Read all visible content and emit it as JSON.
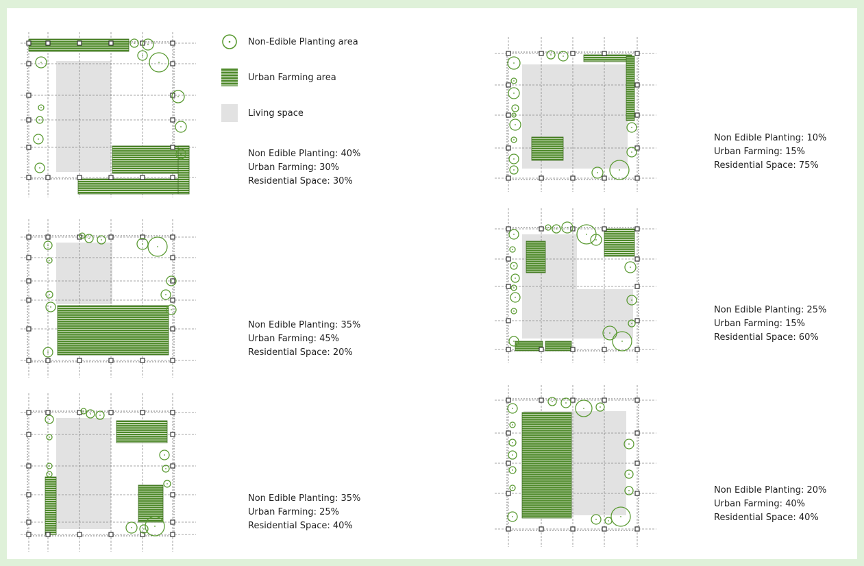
{
  "colors": {
    "background": "#dff1d9",
    "panel": "#ffffff",
    "living_space": "#e2e2e2",
    "farming_green": "#4f8a2b",
    "tree_green": "#5a9a32",
    "grid": "#888888"
  },
  "legend": {
    "non_edible": {
      "label": "Non-Edible Planting area",
      "icon": "tree-circle-icon"
    },
    "farming": {
      "label": "Urban Farming area",
      "icon": "striped-bed-icon"
    },
    "living": {
      "label": "Living space",
      "icon": "grey-square-icon"
    }
  },
  "scenarios": [
    {
      "id": "1",
      "non_edible": "Non Edible Planting: 40%",
      "farming": "Urban Farming: 30%",
      "residential": "Residential  Space: 30%"
    },
    {
      "id": "2",
      "non_edible": "Non Edible Planting: 35%",
      "farming": "Urban Farming: 45%",
      "residential": "Residential Space: 20%"
    },
    {
      "id": "3",
      "non_edible": "Non Edible Planting: 35%",
      "farming": "Urban Farming: 25%",
      "residential": "Residential  Space: 40%"
    },
    {
      "id": "4",
      "non_edible": "Non Edible Planting: 10%",
      "farming": "Urban Farming: 15%",
      "residential": "Residential Space: 75%"
    },
    {
      "id": "5",
      "non_edible": "Non Edible Planting: 25%",
      "farming": "Urban Farming: 15%",
      "residential": "Residential  Space: 60%"
    },
    {
      "id": "6",
      "non_edible": "Non Edible Planting: 20%",
      "farming": "Urban Farming: 40%",
      "residential": "Residential Space: 40%"
    }
  ]
}
